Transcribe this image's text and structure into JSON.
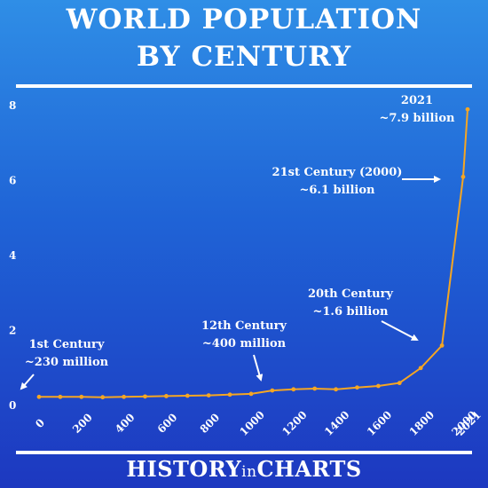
{
  "chart_data": {
    "type": "line",
    "title_line1": "WORLD POPULATION",
    "title_line2": "BY CENTURY",
    "xlabel": "",
    "ylabel": "",
    "ylim": [
      0,
      8
    ],
    "y_ticks": [
      "0",
      "2",
      "4",
      "6",
      "8"
    ],
    "x_ticks": [
      "0",
      "200",
      "400",
      "600",
      "800",
      "1000",
      "1200",
      "1400",
      "1600",
      "1800",
      "2000",
      "2021"
    ],
    "x_tick_values": [
      0,
      200,
      400,
      600,
      800,
      1000,
      1200,
      1400,
      1600,
      1800,
      2000,
      2021
    ],
    "line_color": "#f5a623",
    "series": [
      {
        "x": [
          0,
          100,
          200,
          300,
          400,
          500,
          600,
          700,
          800,
          900,
          1000,
          1100,
          1200,
          1300,
          1400,
          1500,
          1600,
          1700,
          1800,
          1900,
          2000,
          2021
        ],
        "values": [
          0.23,
          0.23,
          0.23,
          0.22,
          0.23,
          0.24,
          0.25,
          0.26,
          0.27,
          0.29,
          0.31,
          0.4,
          0.43,
          0.45,
          0.43,
          0.48,
          0.52,
          0.6,
          1.0,
          1.6,
          6.1,
          7.9
        ]
      }
    ],
    "annotations": [
      {
        "lines": [
          "1st Century",
          "~230 million"
        ]
      },
      {
        "lines": [
          "12th Century",
          "~400 million"
        ]
      },
      {
        "lines": [
          "20th Century",
          "~1.6 billion"
        ]
      },
      {
        "lines": [
          "21st Century (2000)",
          "~6.1 billion"
        ]
      },
      {
        "lines": [
          "2021",
          "~7.9 billion"
        ]
      }
    ]
  },
  "footer": {
    "brand_a": "HISTORY",
    "brand_b": "in",
    "brand_c": "CHARTS"
  }
}
